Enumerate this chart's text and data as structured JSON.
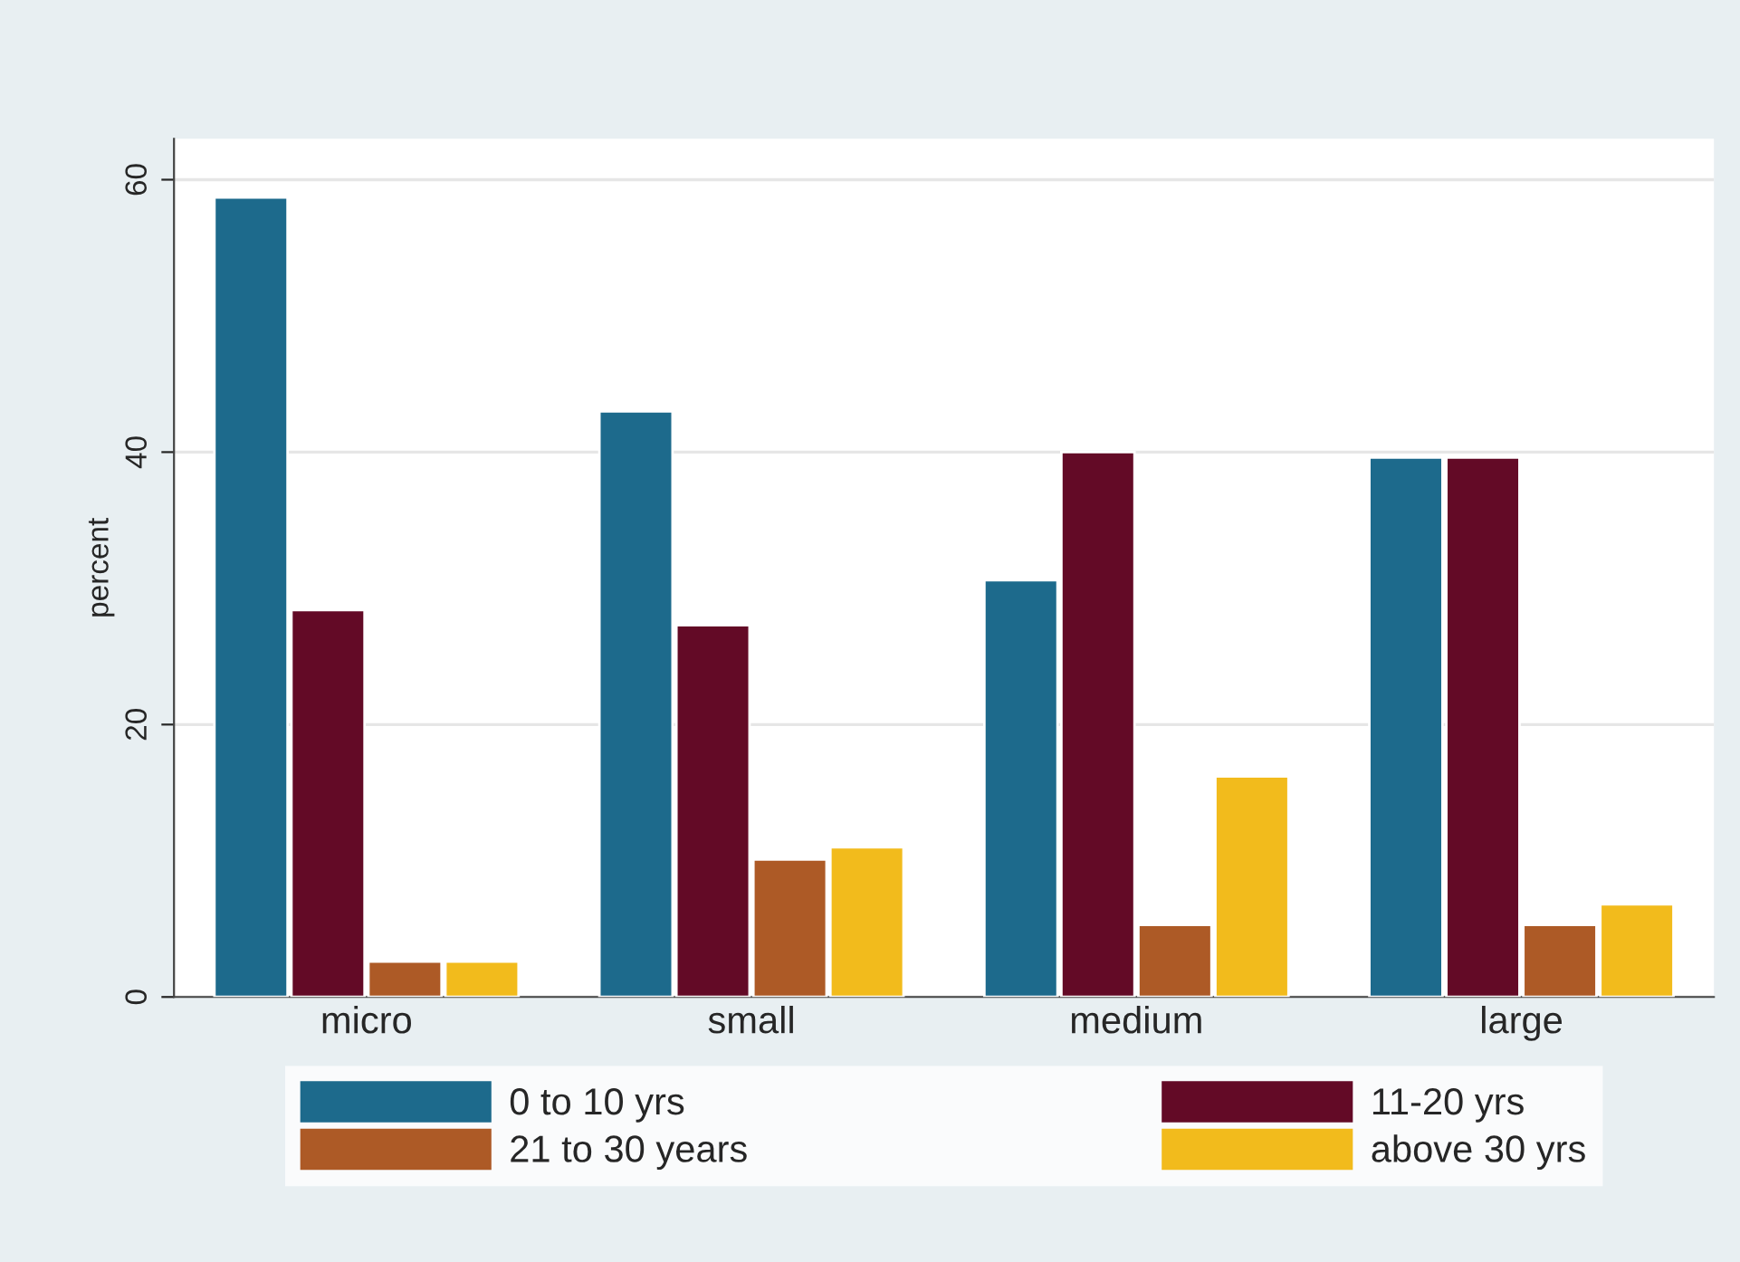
{
  "chart_data": {
    "type": "bar",
    "ylabel": "percent",
    "categories": [
      "micro",
      "small",
      "medium",
      "large"
    ],
    "series": [
      {
        "name": "0 to 10 yrs",
        "color": "#1d6a8c",
        "values": [
          58.7,
          43.0,
          30.6,
          39.6
        ]
      },
      {
        "name": "11-20 yrs",
        "color": "#630a26",
        "values": [
          28.4,
          27.3,
          40.0,
          39.6
        ]
      },
      {
        "name": "21 to 30 years",
        "color": "#ad5a26",
        "values": [
          2.6,
          10.1,
          5.3,
          5.3
        ]
      },
      {
        "name": "above 30 yrs",
        "color": "#f2bb1c",
        "values": [
          2.6,
          11.0,
          16.2,
          6.8
        ]
      }
    ],
    "ylim": [
      0,
      63
    ],
    "yticks": [
      0,
      20,
      40,
      60
    ],
    "grid": "y",
    "legend": "bottom"
  }
}
